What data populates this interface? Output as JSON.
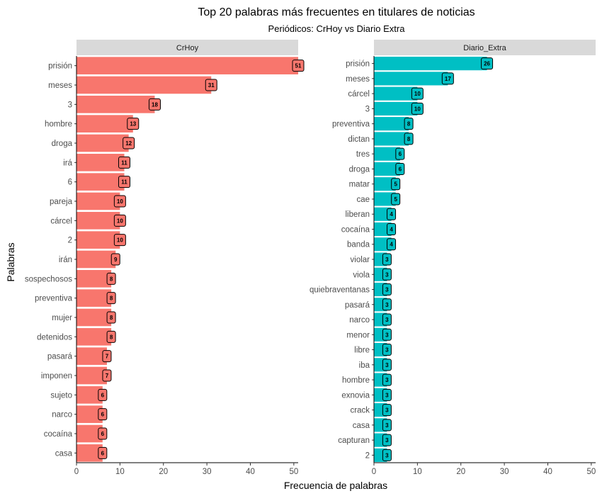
{
  "chart_data": {
    "type": "bar",
    "orientation": "horizontal",
    "title": "Top 20 palabras más frecuentes en titulares de noticias",
    "subtitle": "Periódicos: CrHoy vs Diario Extra",
    "xlabel": "Frecuencia de palabras",
    "ylabel": "Palabras",
    "xlim": [
      0,
      51
    ],
    "x_ticks": [
      0,
      10,
      20,
      30,
      40,
      50
    ],
    "grid": false,
    "panels": [
      {
        "name": "CrHoy",
        "color": "#F8766D",
        "categories": [
          "prisión",
          "meses",
          "3",
          "hombre",
          "droga",
          "irá",
          "6",
          "pareja",
          "cárcel",
          "2",
          "irán",
          "sospechosos",
          "preventiva",
          "mujer",
          "detenidos",
          "pasará",
          "imponen",
          "sujeto",
          "narco",
          "cocaína",
          "casa"
        ],
        "values": [
          51,
          31,
          18,
          13,
          12,
          11,
          11,
          10,
          10,
          10,
          9,
          8,
          8,
          8,
          8,
          7,
          7,
          6,
          6,
          6,
          6
        ]
      },
      {
        "name": "Diario_Extra",
        "color": "#00BFC4",
        "categories": [
          "prisión",
          "meses",
          "cárcel",
          "3",
          "preventiva",
          "dictan",
          "tres",
          "droga",
          "matar",
          "cae",
          "liberan",
          "cocaína",
          "banda",
          "violar",
          "viola",
          "quiebraventanas",
          "pasará",
          "narco",
          "menor",
          "libre",
          "iba",
          "hombre",
          "exnovia",
          "crack",
          "casa",
          "capturan",
          "2"
        ],
        "values": [
          26,
          17,
          10,
          10,
          8,
          8,
          6,
          6,
          5,
          5,
          4,
          4,
          4,
          3,
          3,
          3,
          3,
          3,
          3,
          3,
          3,
          3,
          3,
          3,
          3,
          3,
          3
        ]
      }
    ]
  }
}
